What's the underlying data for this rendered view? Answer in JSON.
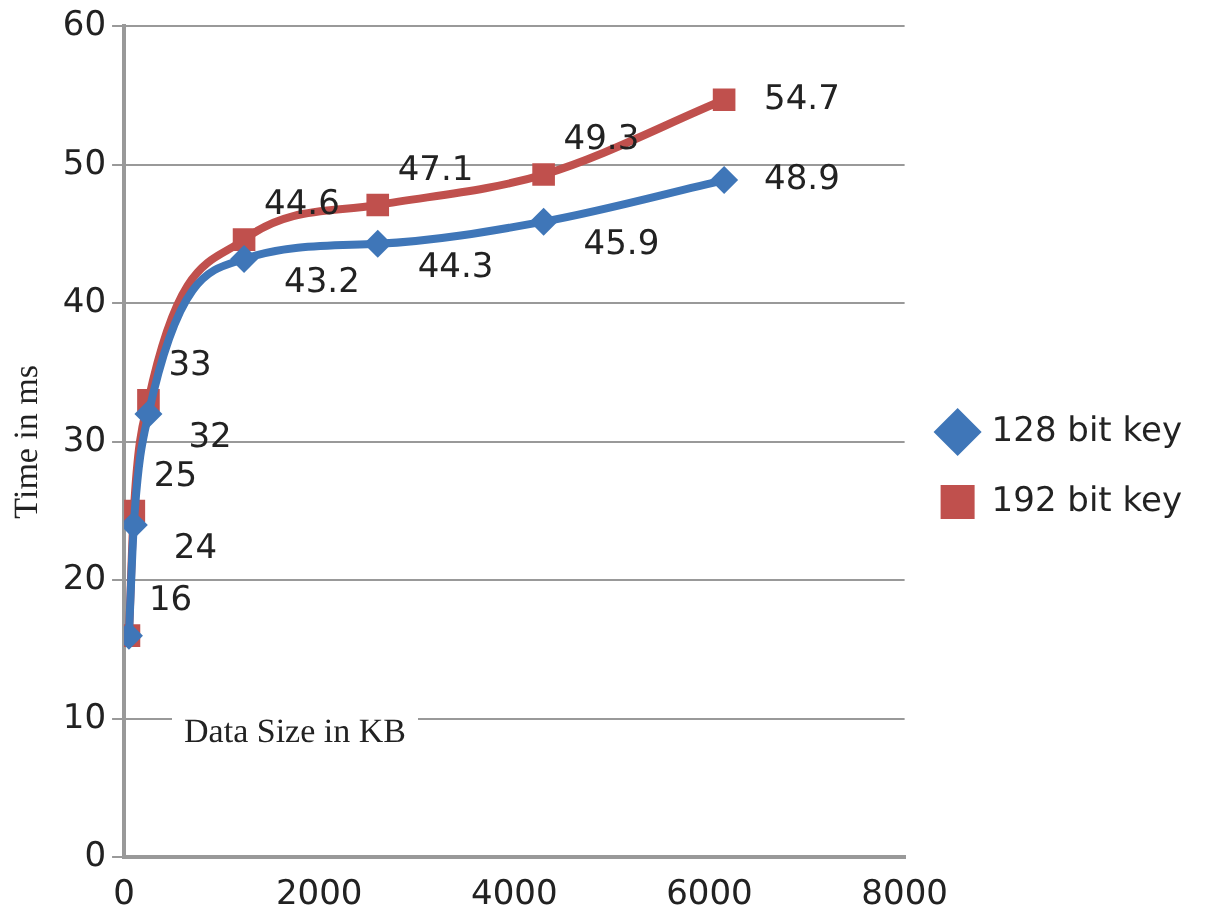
{
  "chart_data": {
    "type": "line",
    "xlabel": "Data Size in KB",
    "ylabel": "Time in ms",
    "x": [
      50,
      100,
      250,
      1230,
      2600,
      4300,
      6150
    ],
    "series": [
      {
        "name": "128 bit key",
        "color": "#3f76b8",
        "marker": "diamond",
        "values": [
          16,
          24,
          32,
          43.2,
          44.3,
          45.9,
          48.9
        ],
        "value_labels": [
          null,
          "24",
          "32",
          "43.2",
          "44.3",
          "45.9",
          "48.9"
        ]
      },
      {
        "name": "192 bit key",
        "color": "#c0504d",
        "marker": "square",
        "values": [
          16,
          25,
          33,
          44.6,
          47.1,
          49.3,
          54.7
        ],
        "value_labels": [
          "16",
          "25",
          "33",
          "44.6",
          "47.1",
          "49.3",
          "54.7"
        ]
      }
    ],
    "xlim": [
      0,
      8000
    ],
    "xticks": [
      0,
      2000,
      4000,
      6000,
      8000
    ],
    "ylim": [
      0,
      60
    ],
    "yticks": [
      0,
      10,
      20,
      30,
      40,
      50,
      60
    ],
    "grid": "y",
    "legend": "right"
  }
}
